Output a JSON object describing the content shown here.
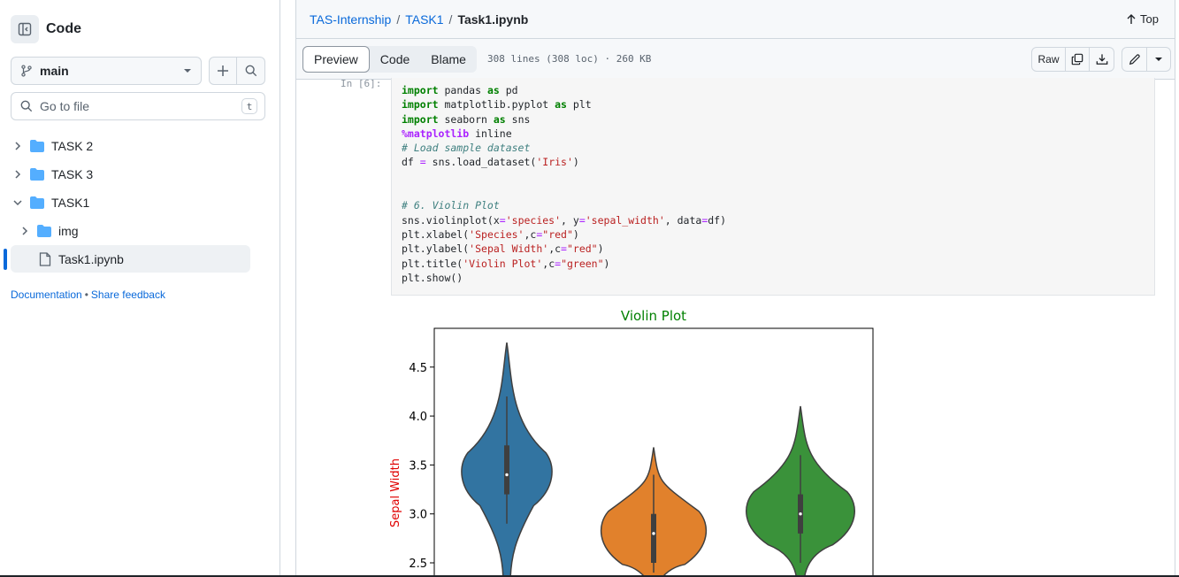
{
  "sidebar": {
    "title": "Code",
    "branch": "main",
    "goto_placeholder": "Go to file",
    "goto_shortcut": "t",
    "tree": [
      {
        "label": "TASK 2",
        "type": "folder",
        "expanded": false
      },
      {
        "label": "TASK 3",
        "type": "folder",
        "expanded": false
      },
      {
        "label": "TASK1",
        "type": "folder",
        "expanded": true
      },
      {
        "label": "img",
        "type": "folder",
        "expanded": false
      },
      {
        "label": "Task1.ipynb",
        "type": "file",
        "selected": true
      }
    ],
    "footer": {
      "documentation": "Documentation",
      "separator": "•",
      "feedback": "Share feedback"
    }
  },
  "breadcrumb": {
    "repo": "TAS-Internship",
    "sep": "/",
    "folder": "TASK1",
    "file": "Task1.ipynb"
  },
  "top_link": "Top",
  "toolbar": {
    "tabs": [
      "Preview",
      "Code",
      "Blame"
    ],
    "active_tab": "Preview",
    "meta": "308 lines (308 loc) · 260 KB",
    "raw_label": "Raw"
  },
  "notebook": {
    "prompt": "In [6]:",
    "code_lines": [
      "import pandas as pd",
      "import matplotlib.pyplot as plt",
      "import seaborn as sns",
      "%matplotlib inline",
      "# Load sample dataset",
      "df = sns.load_dataset('Iris')",
      "",
      "",
      "# 6. Violin Plot",
      "sns.violinplot(x='species', y='sepal_width', data=df)",
      "plt.xlabel('Species',c=\"red\")",
      "plt.ylabel('Sepal Width',c=\"red\")",
      "plt.title('Violin Plot',c=\"green\")",
      "plt.show()"
    ]
  },
  "colors": {
    "accent": "#0969da",
    "title": "#008000",
    "ylabel": "#e00000"
  },
  "chart_data": {
    "type": "violin",
    "title": "Violin Plot",
    "ylabel": "Sepal Width",
    "ylim": [
      2.4,
      4.9
    ],
    "yticks": [
      "2.5",
      "3.0",
      "3.5",
      "4.0",
      "4.5"
    ],
    "series": [
      {
        "color": "#3274a1",
        "median": 3.4,
        "q1": 3.2,
        "q3": 3.7,
        "whisker_low": 2.9,
        "whisker_high": 4.2,
        "max": 4.75
      },
      {
        "color": "#e1812c",
        "median": 2.8,
        "q1": 2.5,
        "q3": 3.0,
        "whisker_low": 2.4,
        "whisker_high": 3.4,
        "max": 3.68
      },
      {
        "color": "#3a923a",
        "median": 3.0,
        "q1": 2.8,
        "q3": 3.2,
        "whisker_low": 2.5,
        "whisker_high": 3.6,
        "max": 4.1
      }
    ]
  }
}
